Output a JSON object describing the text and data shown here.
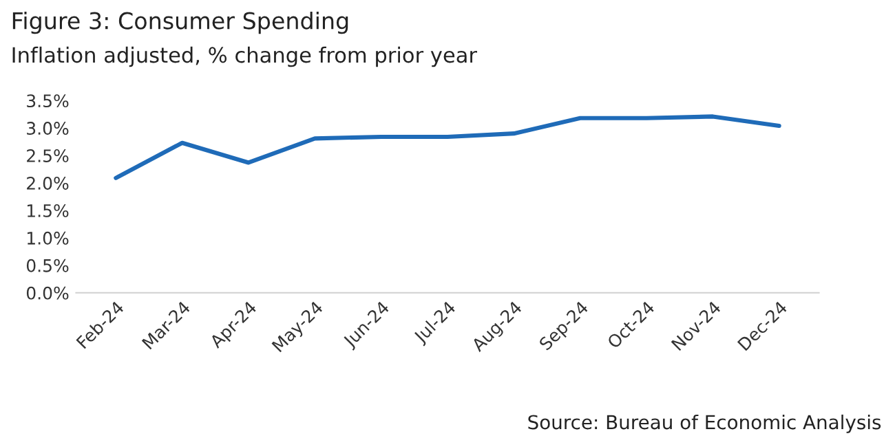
{
  "chart_data": {
    "type": "line",
    "title": "Figure 3: Consumer Spending",
    "subtitle": "Inflation adjusted, % change from prior year",
    "categories": [
      "Feb-24",
      "Mar-24",
      "Apr-24",
      "May-24",
      "Jun-24",
      "Jul-24",
      "Aug-24",
      "Sep-24",
      "Oct-24",
      "Nov-24",
      "Dec-24"
    ],
    "series": [
      {
        "color": "#1f6bb8",
        "values": [
          2.09,
          2.73,
          2.37,
          2.81,
          2.84,
          2.84,
          2.9,
          3.18,
          3.18,
          3.21,
          3.04
        ]
      }
    ],
    "ylim": [
      0,
      3.5
    ],
    "yticks": [
      {
        "value": 0,
        "label": "0.0%"
      },
      {
        "value": 0.5,
        "label": "0.5%"
      },
      {
        "value": 1,
        "label": "1.0%"
      },
      {
        "value": 1.5,
        "label": "1.5%"
      },
      {
        "value": 2,
        "label": "2.0%"
      },
      {
        "value": 2.5,
        "label": "2.5%"
      },
      {
        "value": 3,
        "label": "3.0%"
      },
      {
        "value": 3.5,
        "label": "3.5%"
      }
    ],
    "grid": false,
    "legend": false,
    "marker": "none",
    "line_style": "solid",
    "annotations": [
      "Source: Bureau of Economic Analysis"
    ]
  }
}
